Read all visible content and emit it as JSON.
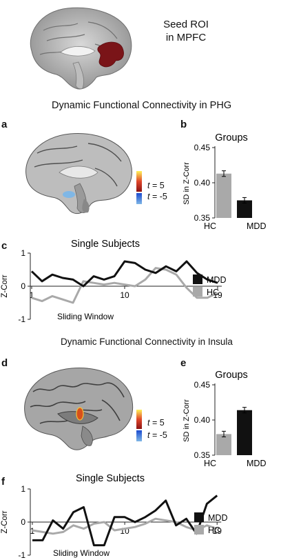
{
  "seed": {
    "line1": "Seed ROI",
    "line2": "in MPFC"
  },
  "section1_title": "Dynamic Functional Connectivity in PHG",
  "section2_title": "Dynamic Functional Connectivity in Insula",
  "panels": {
    "a": "a",
    "b": "b",
    "c": "c",
    "d": "d",
    "e": "e",
    "f": "f"
  },
  "brain_legend": {
    "pos": {
      "var": "t",
      "rest": " = 5"
    },
    "neg": {
      "var": "t",
      "rest": " = -5"
    }
  },
  "colors": {
    "HC": "#a9a9a9",
    "MDD": "#111111",
    "seed_roi": "#7a1418",
    "pos_cluster": "#d8501a",
    "neg_cluster": "#7fb7e6"
  },
  "chart_data": [
    {
      "id": "b",
      "type": "bar",
      "title": "Groups",
      "ylabel": "SD in Z-Corr",
      "categories": [
        "HC",
        "MDD"
      ],
      "values": [
        0.413,
        0.375
      ],
      "errors": [
        0.004,
        0.004
      ],
      "ylim": [
        0.35,
        0.45
      ],
      "yticks": [
        "0.45",
        "0.40",
        "0.35"
      ]
    },
    {
      "id": "c",
      "type": "line",
      "title": "Single Subjects",
      "ylabel": "Z-Corr",
      "xlabel": "Sliding Window",
      "xticks": [
        "1",
        "10",
        "19"
      ],
      "yticks": [
        "1",
        "0",
        "-1"
      ],
      "ylim": [
        -1,
        1
      ],
      "series": [
        {
          "name": "MDD",
          "values": [
            0.45,
            0.15,
            0.35,
            0.25,
            0.2,
            0.0,
            0.3,
            0.2,
            0.3,
            0.75,
            0.7,
            0.5,
            0.4,
            0.6,
            0.45,
            0.75,
            0.4,
            0.2,
            0.1
          ]
        },
        {
          "name": "HC",
          "values": [
            -0.35,
            -0.45,
            -0.3,
            -0.4,
            -0.5,
            0.15,
            0.1,
            0.05,
            0.1,
            0.05,
            0.0,
            0.2,
            0.55,
            0.5,
            0.35,
            -0.05,
            -0.35,
            -0.35,
            -0.2
          ]
        }
      ]
    },
    {
      "id": "e",
      "type": "bar",
      "title": "Groups",
      "ylabel": "SD in Z-Corr",
      "categories": [
        "HC",
        "MDD"
      ],
      "values": [
        0.38,
        0.414
      ],
      "errors": [
        0.004,
        0.004
      ],
      "ylim": [
        0.35,
        0.45
      ],
      "yticks": [
        "0.45",
        "0.40",
        "0.35"
      ]
    },
    {
      "id": "f",
      "type": "line",
      "title": "Single Subjects",
      "ylabel": "Z-Corr",
      "xlabel": "Sliding Window",
      "xticks": [
        "1",
        "10",
        "19"
      ],
      "yticks": [
        "1",
        "0",
        "-1"
      ],
      "ylim": [
        -1,
        1
      ],
      "series": [
        {
          "name": "MDD",
          "values": [
            -0.55,
            -0.55,
            0.05,
            -0.2,
            0.3,
            0.45,
            -0.7,
            -0.7,
            0.15,
            0.15,
            0.0,
            0.15,
            0.35,
            0.65,
            -0.1,
            0.1,
            -0.35,
            0.55,
            0.8
          ]
        },
        {
          "name": "HC",
          "values": [
            -0.25,
            -0.3,
            -0.35,
            -0.3,
            -0.1,
            -0.2,
            -0.05,
            0.0,
            -0.25,
            -0.2,
            -0.15,
            -0.05,
            0.1,
            0.05,
            0.0,
            -0.15,
            -0.25,
            -0.1,
            -0.2
          ]
        }
      ]
    }
  ]
}
